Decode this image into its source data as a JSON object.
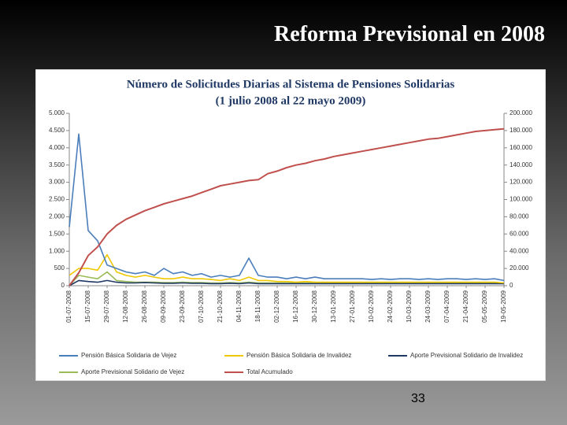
{
  "slide_title": "Reforma Previsional en 2008",
  "page_number": "33",
  "chart_data": {
    "type": "line",
    "title": "Número de Solicitudes Diarias al Sistema de Pensiones Solidarias",
    "subtitle": "(1 julio 2008 al 22 mayo 2009)",
    "categories": [
      "01-07-2008",
      null,
      "15-07-2008",
      null,
      "29-07-2008",
      null,
      "12-08-2008",
      null,
      "26-08-2008",
      null,
      "09-09-2008",
      null,
      "23-09-2008",
      null,
      "07-10-2008",
      null,
      "21-10-2008",
      null,
      "04-11-2008",
      null,
      "18-11-2008",
      null,
      "02-12-2008",
      null,
      "16-12-2008",
      null,
      "30-12-2008",
      null,
      "13-01-2009",
      null,
      "27-01-2009",
      null,
      "10-02-2009",
      null,
      "24-02-2009",
      null,
      "10-03-2009",
      null,
      "24-03-2009",
      null,
      "07-04-2009",
      null,
      "21-04-2009",
      null,
      "05-05-2009",
      null,
      "19-05-2009"
    ],
    "series": [
      {
        "name": "Pensión Básica Solidaria de Vejez",
        "color": "#4a7ebb",
        "values": [
          1700,
          4400,
          1600,
          1300,
          600,
          500,
          400,
          350,
          400,
          300,
          500,
          350,
          400,
          300,
          350,
          250,
          300,
          250,
          300,
          800,
          300,
          250,
          250,
          200,
          250,
          200,
          250,
          200,
          200,
          200,
          200,
          200,
          180,
          200,
          180,
          200,
          200,
          180,
          200,
          180,
          200,
          200,
          180,
          200,
          180,
          200,
          150
        ]
      },
      {
        "name": "Pensión Básica Solidaria de Invalidez",
        "color": "#f0c800",
        "values": [
          300,
          500,
          500,
          450,
          900,
          400,
          300,
          250,
          300,
          250,
          200,
          200,
          250,
          200,
          200,
          180,
          150,
          200,
          150,
          250,
          150,
          150,
          120,
          120,
          100,
          120,
          100,
          100,
          100,
          100,
          100,
          100,
          100,
          100,
          100,
          100,
          100,
          100,
          100,
          100,
          100,
          100,
          100,
          100,
          100,
          100,
          80
        ]
      },
      {
        "name": "Aporte Previsional Solidario de Invalidez",
        "color": "#1f3864",
        "values": [
          0,
          150,
          120,
          100,
          150,
          100,
          80,
          80,
          90,
          80,
          70,
          70,
          80,
          70,
          70,
          60,
          60,
          70,
          60,
          80,
          60,
          60,
          60,
          60,
          60,
          60,
          60,
          60,
          60,
          60,
          60,
          60,
          60,
          60,
          60,
          60,
          60,
          60,
          60,
          60,
          60,
          60,
          60,
          60,
          60,
          60,
          60
        ]
      },
      {
        "name": "Aporte Previsional Solidario de Vejez",
        "color": "#9bbb59",
        "values": [
          0,
          300,
          250,
          200,
          400,
          150,
          120,
          100,
          100,
          100,
          90,
          90,
          100,
          90,
          90,
          80,
          80,
          90,
          80,
          100,
          80,
          80,
          80,
          80,
          80,
          80,
          80,
          80,
          80,
          80,
          80,
          80,
          80,
          80,
          80,
          80,
          80,
          80,
          80,
          80,
          80,
          80,
          80,
          80,
          80,
          80,
          80
        ]
      },
      {
        "name": "Total Acumulado",
        "color": "#c0504d",
        "axis": "y2",
        "values": [
          0,
          15000,
          35000,
          45000,
          60000,
          70000,
          77000,
          82000,
          87000,
          91000,
          95000,
          98000,
          101000,
          104000,
          108000,
          112000,
          116000,
          118000,
          120000,
          122000,
          123000,
          130000,
          133000,
          137000,
          140000,
          142000,
          145000,
          147000,
          150000,
          152000,
          154000,
          156000,
          158000,
          160000,
          162000,
          164000,
          166000,
          168000,
          170000,
          171000,
          173000,
          175000,
          177000,
          179000,
          180000,
          181000,
          182000
        ]
      }
    ],
    "ylim": [
      0,
      5000
    ],
    "yticks": [
      0,
      500,
      {
        "value": 1000,
        "label": "1.000"
      },
      {
        "value": 1500,
        "label": "1.500"
      },
      {
        "value": 2000,
        "label": "2.000"
      },
      {
        "value": 2500,
        "label": "2.500"
      },
      {
        "value": 3000,
        "label": "3.000"
      },
      {
        "value": 3500,
        "label": "3.500"
      },
      {
        "value": 4000,
        "label": "4.000"
      },
      {
        "value": 4500,
        "label": "4.500"
      },
      {
        "value": 5000,
        "label": "5.000"
      }
    ],
    "y2lim": [
      0,
      200000
    ],
    "y2ticks": [
      0,
      {
        "value": 20000,
        "label": "20.000"
      },
      {
        "value": 40000,
        "label": "40.000"
      },
      {
        "value": 60000,
        "label": "60.000"
      },
      {
        "value": 80000,
        "label": "80.000"
      },
      {
        "value": 100000,
        "label": "100.000"
      },
      {
        "value": 120000,
        "label": "120.000"
      },
      {
        "value": 140000,
        "label": "140.000"
      },
      {
        "value": 160000,
        "label": "160.000"
      },
      {
        "value": 180000,
        "label": "180.000"
      },
      {
        "value": 200000,
        "label": "200.000"
      }
    ],
    "grid": false,
    "legend": "bottom"
  }
}
